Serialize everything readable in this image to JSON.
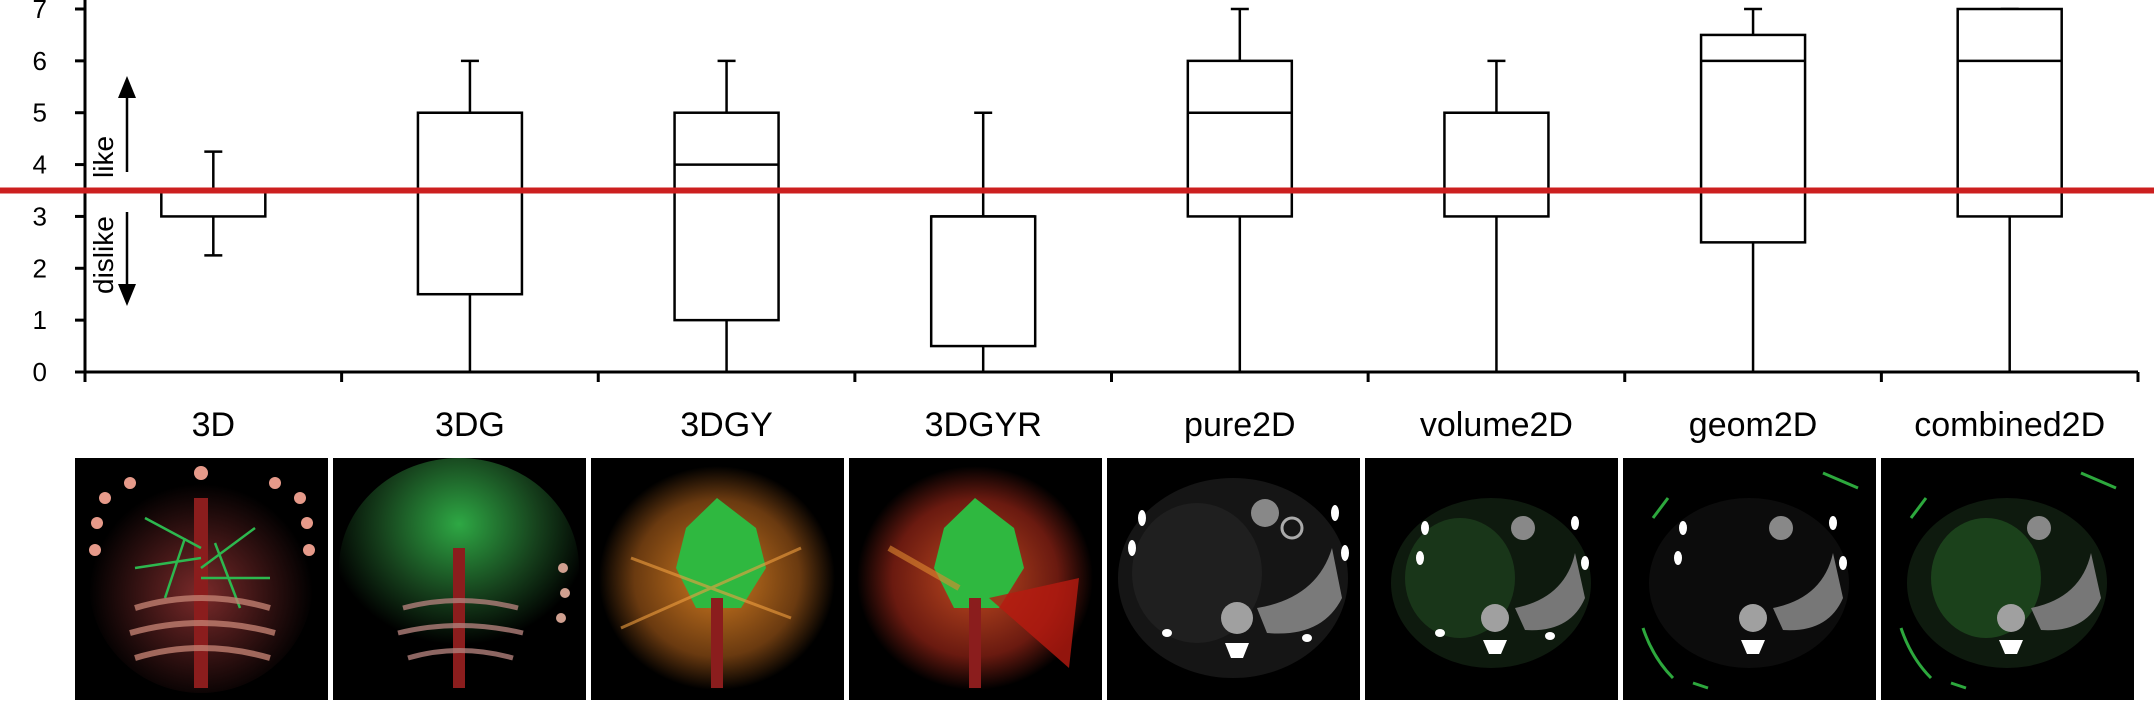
{
  "chart_data": {
    "type": "box",
    "categories": [
      "3D",
      "3DG",
      "3DGY",
      "3DGYR",
      "pure2D",
      "volume2D",
      "geom2D",
      "combined2D"
    ],
    "boxes": [
      {
        "name": "3D",
        "whisker_low": 2.25,
        "q1": 3.0,
        "median": 3.5,
        "q3": 3.5,
        "whisker_high": 4.25
      },
      {
        "name": "3DG",
        "whisker_low": 0,
        "q1": 1.5,
        "median": 5.0,
        "q3": 5.0,
        "whisker_high": 6
      },
      {
        "name": "3DGY",
        "whisker_low": 0,
        "q1": 1.0,
        "median": 4.0,
        "q3": 5.0,
        "whisker_high": 6
      },
      {
        "name": "3DGYR",
        "whisker_low": 0,
        "q1": 0.5,
        "median": 3.0,
        "q3": 3.0,
        "whisker_high": 5
      },
      {
        "name": "pure2D",
        "whisker_low": 0,
        "q1": 3.0,
        "median": 5.0,
        "q3": 6.0,
        "whisker_high": 7
      },
      {
        "name": "volume2D",
        "whisker_low": 0,
        "q1": 3.0,
        "median": 5.0,
        "q3": 5.0,
        "whisker_high": 6
      },
      {
        "name": "geom2D",
        "whisker_low": 0,
        "q1": 2.5,
        "median": 6.0,
        "q3": 6.5,
        "whisker_high": 7
      },
      {
        "name": "combined2D",
        "whisker_low": 0,
        "q1": 3.0,
        "median": 6.0,
        "q3": 7.0,
        "whisker_high": 7
      }
    ],
    "yticks": [
      "0",
      "1",
      "2",
      "3",
      "4",
      "5",
      "6",
      "7"
    ],
    "ylim": [
      0,
      7
    ],
    "reference_line": {
      "value": 3.5,
      "color": "#cc1f1f"
    },
    "annotations": {
      "like": "like",
      "dislike": "dislike"
    },
    "grid": false,
    "legend": "none"
  },
  "thumbnails": [
    {
      "name": "3D",
      "style": "rib-cage-render"
    },
    {
      "name": "3DG",
      "style": "green-glow-render"
    },
    {
      "name": "3DGY",
      "style": "orange-green-render"
    },
    {
      "name": "3DGYR",
      "style": "red-orange-green-render"
    },
    {
      "name": "pure2D",
      "style": "ct-slice"
    },
    {
      "name": "volume2D",
      "style": "ct-slice-green-tint"
    },
    {
      "name": "geom2D",
      "style": "ct-slice-green-arcs"
    },
    {
      "name": "combined2D",
      "style": "ct-slice-green-tint-arcs"
    }
  ]
}
